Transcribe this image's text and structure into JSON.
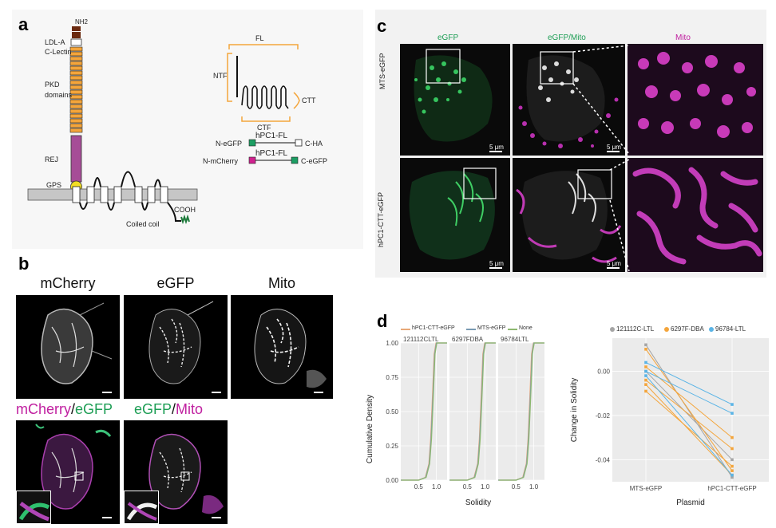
{
  "panels": {
    "a": "a",
    "b": "b",
    "c": "c",
    "d": "d"
  },
  "panel_a": {
    "domains": {
      "nh2": "NH2",
      "ldla": "LDL-A",
      "clectin": "C-Lectin",
      "pkd1": "PKD",
      "pkd2": "domains",
      "rej": "REJ",
      "gps": "GPS",
      "cooh": "COOH",
      "coiled": "Coiled coil"
    },
    "schematic": {
      "fl": "FL",
      "ntf": "NTF",
      "ctt": "CTT",
      "ctf": "CTF"
    },
    "constructs": [
      {
        "left": "N-eGFP",
        "middle": "hPC1-FL",
        "right": "C-HA"
      },
      {
        "left": "N-mCherry",
        "middle": "hPC1-FL",
        "right": "C-eGFP"
      }
    ],
    "colors": {
      "orange": "#f4a53b",
      "purple": "#a64d97",
      "yellow": "#f2dd24",
      "green": "#1c9e63",
      "magenta": "#d0218f",
      "gray": "#c6c6c6"
    }
  },
  "panel_b": {
    "top_headers": [
      "mCherry",
      "eGFP",
      "Mito"
    ],
    "bottom_headers": [
      {
        "a": "mCherry",
        "sep": "/",
        "b": "eGFP"
      },
      {
        "a": "eGFP",
        "sep": "/",
        "b": "Mito"
      }
    ],
    "header_colors": {
      "magenta": "#c020a0",
      "green": "#1e9e55"
    }
  },
  "panel_c": {
    "col_headers": [
      "eGFP",
      "eGFP/Mito",
      "Mito"
    ],
    "row_labels": [
      "MTS-eGFP",
      "hPC1-CTT-eGFP"
    ],
    "scale": "5 μm"
  },
  "panel_d": {
    "left": {
      "legend": [
        "hPC1-CTT-eGFP",
        "MTS-eGFP",
        "None"
      ],
      "facets": [
        "121112CLTL",
        "6297FDBA",
        "96784LTL"
      ],
      "y_ticks": [
        "0.00",
        "0.25",
        "0.50",
        "0.75",
        "1.00"
      ],
      "x_ticks": [
        "0.5",
        "1.0"
      ],
      "xlabel": "Solidity",
      "ylabel": "Cumulative Density"
    },
    "right": {
      "legend": [
        "121112C-LTL",
        "6297F-DBA",
        "96784-LTL"
      ],
      "y_ticks": [
        "0.00",
        "-0.02",
        "-0.04"
      ],
      "x_ticks": [
        "MTS-eGFP",
        "hPC1-CTT-eGFP"
      ],
      "xlabel": "Plasmid",
      "ylabel": "Change in Solidity"
    }
  },
  "chart_data": [
    {
      "type": "line",
      "title": "",
      "xlabel": "Solidity",
      "ylabel": "Cumulative Density",
      "facets": [
        "121112CLTL",
        "6297FDBA",
        "96784LTL"
      ],
      "series": [
        {
          "name": "hPC1-CTT-eGFP",
          "color": "#e8a878"
        },
        {
          "name": "MTS-eGFP",
          "color": "#7a9bb3"
        },
        {
          "name": "None",
          "color": "#8db870"
        }
      ],
      "x": [
        0.0,
        0.5,
        0.7,
        0.8,
        0.85,
        0.9,
        0.95,
        1.0,
        1.3
      ],
      "values": [
        0.0,
        0.0,
        0.02,
        0.12,
        0.3,
        0.6,
        0.92,
        1.0,
        1.0
      ],
      "xlim": [
        0.0,
        1.3
      ],
      "ylim": [
        0.0,
        1.0
      ]
    },
    {
      "type": "line",
      "title": "",
      "xlabel": "Plasmid",
      "ylabel": "Change in Solidity",
      "categories": [
        "MTS-eGFP",
        "hPC1-CTT-eGFP"
      ],
      "series": [
        {
          "name": "121112C-LTL",
          "color": "#a5a5a5",
          "values": [
            [
              0.012,
              -0.048
            ],
            [
              0.0,
              -0.04
            ]
          ]
        },
        {
          "name": "6297F-DBA",
          "color": "#f4a53b",
          "values": [
            [
              0.01,
              -0.045
            ],
            [
              -0.006,
              -0.047
            ],
            [
              -0.009,
              -0.043
            ],
            [
              -0.004,
              -0.035
            ],
            [
              0.002,
              -0.03
            ]
          ]
        },
        {
          "name": "96784-LTL",
          "color": "#5ab4e6",
          "values": [
            [
              0.004,
              -0.015
            ],
            [
              0.0,
              -0.019
            ],
            [
              -0.002,
              -0.047
            ]
          ]
        }
      ],
      "ylim": [
        -0.05,
        0.015
      ]
    }
  ]
}
